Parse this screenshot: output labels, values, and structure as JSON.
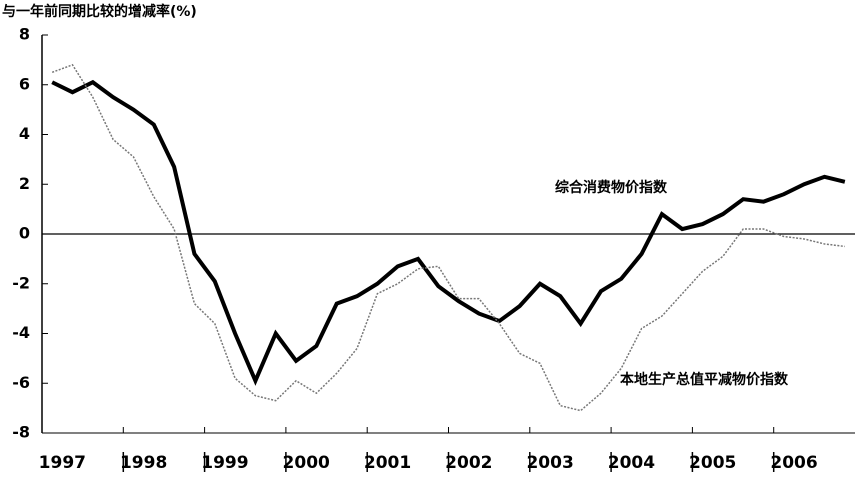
{
  "chart_data": {
    "type": "line",
    "title": "与一年前同期比较的增减率(%)",
    "categories": [
      "1997",
      null,
      null,
      null,
      "1998",
      null,
      null,
      null,
      "1999",
      null,
      null,
      null,
      "2000",
      null,
      null,
      null,
      "2001",
      null,
      null,
      null,
      "2002",
      null,
      null,
      null,
      "2003",
      null,
      null,
      null,
      "2004",
      null,
      null,
      null,
      "2005",
      null,
      null,
      null,
      "2006",
      null,
      null,
      null
    ],
    "series": [
      {
        "name": "综合消费物价指数",
        "color": "#000000",
        "values": [
          6.1,
          5.7,
          6.1,
          5.5,
          5.0,
          4.4,
          2.7,
          -0.8,
          -1.9,
          -4.0,
          -5.9,
          -4.0,
          -5.1,
          -4.5,
          -2.8,
          -2.5,
          -2.0,
          -1.3,
          -1.0,
          -2.1,
          -2.7,
          -3.2,
          -3.5,
          -2.9,
          -2.0,
          -2.5,
          -3.6,
          -2.3,
          -1.8,
          -0.8,
          0.8,
          0.2,
          0.4,
          0.8,
          1.4,
          1.3,
          1.6,
          2.0,
          2.3,
          2.1
        ]
      },
      {
        "name": "本地生产总值平减物价指数",
        "color": "#777777",
        "values": [
          6.5,
          6.8,
          5.5,
          3.8,
          3.1,
          1.5,
          0.2,
          -2.8,
          -3.6,
          -5.8,
          -6.5,
          -6.7,
          -5.9,
          -6.4,
          -5.6,
          -4.6,
          -2.4,
          -2.0,
          -1.4,
          -1.3,
          -2.6,
          -2.6,
          -3.6,
          -4.8,
          -5.2,
          -6.9,
          -7.1,
          -6.4,
          -5.4,
          -3.8,
          -3.3,
          -2.4,
          -1.5,
          -0.9,
          0.2,
          0.2,
          -0.1,
          -0.2,
          -0.4,
          -0.5
        ]
      }
    ],
    "ylim": [
      -8,
      8
    ],
    "yticks": [
      -8,
      -6,
      -4,
      -2,
      0,
      2,
      4,
      6,
      8
    ]
  }
}
